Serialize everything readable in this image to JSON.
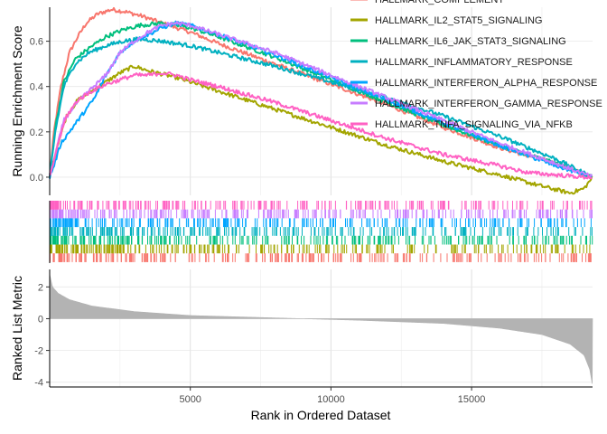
{
  "chart_data": {
    "type": "line",
    "panels": [
      {
        "name": "running-enrichment-score",
        "ylabel": "Running Enrichment Score",
        "ylim": [
          -0.08,
          0.75
        ],
        "yticks": [
          "0.0",
          "0.2",
          "0.4",
          "0.6"
        ],
        "ytick_values": [
          0.0,
          0.2,
          0.4,
          0.6
        ]
      },
      {
        "name": "gene-hit-ticks",
        "ylabel": ""
      },
      {
        "name": "ranked-list-metric",
        "ylabel": "Ranked List Metric",
        "ylim": [
          -4.3,
          3.1
        ],
        "yticks": [
          "2",
          "0",
          "-2",
          "-4"
        ],
        "ytick_values": [
          2,
          0,
          -2,
          -4
        ]
      }
    ],
    "xlabel": "Rank in Ordered Dataset",
    "xlim": [
      0,
      19300
    ],
    "xticks": [
      "5000",
      "10000",
      "15000"
    ],
    "xtick_values": [
      5000,
      10000,
      15000
    ],
    "grid": true,
    "legend_position": "top-right",
    "series": [
      {
        "name": "HALLMARK_COMPLEMENT",
        "color": "#F8766D",
        "x": [
          0,
          150,
          400,
          700,
          1000,
          1300,
          1700,
          2200,
          2700,
          3300,
          4000,
          5000,
          6000,
          8000,
          10000,
          12000,
          14000,
          16000,
          18000,
          19300
        ],
        "y": [
          0.0,
          0.2,
          0.4,
          0.55,
          0.62,
          0.68,
          0.72,
          0.74,
          0.73,
          0.71,
          0.68,
          0.64,
          0.59,
          0.5,
          0.41,
          0.32,
          0.22,
          0.13,
          0.06,
          0.0
        ]
      },
      {
        "name": "HALLMARK_IL2_STAT5_SIGNALING",
        "color": "#A3A500",
        "x": [
          0,
          300,
          600,
          1000,
          1500,
          2000,
          2500,
          3000,
          3500,
          4500,
          6000,
          8000,
          10000,
          12000,
          14000,
          16000,
          17500,
          18500,
          19000,
          19300
        ],
        "y": [
          0.0,
          0.15,
          0.27,
          0.34,
          0.38,
          0.42,
          0.46,
          0.49,
          0.47,
          0.44,
          0.38,
          0.3,
          0.22,
          0.14,
          0.07,
          0.01,
          -0.04,
          -0.07,
          -0.05,
          0.0
        ]
      },
      {
        "name": "HALLMARK_IL6_JAK_STAT3_SIGNALING",
        "color": "#00BF7D",
        "x": [
          0,
          200,
          500,
          900,
          1400,
          2000,
          2600,
          3200,
          4000,
          5000,
          6000,
          8000,
          10000,
          12000,
          14000,
          16000,
          18000,
          19300
        ],
        "y": [
          0.0,
          0.22,
          0.42,
          0.52,
          0.57,
          0.62,
          0.65,
          0.67,
          0.68,
          0.66,
          0.62,
          0.53,
          0.43,
          0.33,
          0.23,
          0.14,
          0.06,
          0.0
        ]
      },
      {
        "name": "HALLMARK_INFLAMMATORY_RESPONSE",
        "color": "#00B0C0",
        "x": [
          0,
          200,
          500,
          900,
          1400,
          2000,
          2600,
          3200,
          4000,
          5000,
          6000,
          8000,
          10000,
          12000,
          14000,
          16000,
          18000,
          19300
        ],
        "y": [
          0.0,
          0.2,
          0.4,
          0.5,
          0.55,
          0.58,
          0.6,
          0.61,
          0.6,
          0.58,
          0.55,
          0.49,
          0.42,
          0.35,
          0.27,
          0.18,
          0.08,
          0.0
        ]
      },
      {
        "name": "HALLMARK_INTERFERON_ALPHA_RESPONSE",
        "color": "#00A5FF",
        "x": [
          0,
          150,
          400,
          700,
          1000,
          1300,
          1600,
          2000,
          2500,
          3000,
          3500,
          4000,
          4500,
          5000,
          6000,
          8000,
          10000,
          12000,
          14000,
          16000,
          18000,
          19300
        ],
        "y": [
          0.0,
          0.05,
          0.15,
          0.2,
          0.25,
          0.3,
          0.35,
          0.45,
          0.55,
          0.6,
          0.63,
          0.66,
          0.68,
          0.67,
          0.63,
          0.54,
          0.44,
          0.34,
          0.24,
          0.14,
          0.05,
          0.0
        ]
      },
      {
        "name": "HALLMARK_INTERFERON_GAMMA_RESPONSE",
        "color": "#C77CFF",
        "x": [
          0,
          200,
          500,
          900,
          1400,
          2000,
          2500,
          3000,
          3500,
          4000,
          4500,
          5000,
          6000,
          8000,
          10000,
          12000,
          14000,
          16000,
          18000,
          19300
        ],
        "y": [
          0.0,
          0.1,
          0.25,
          0.32,
          0.38,
          0.45,
          0.55,
          0.6,
          0.64,
          0.67,
          0.68,
          0.67,
          0.63,
          0.55,
          0.45,
          0.35,
          0.25,
          0.15,
          0.06,
          0.0
        ]
      },
      {
        "name": "HALLMARK_TNFA_SIGNALING_VIA_NFKB",
        "color": "#FF61C3",
        "x": [
          0,
          300,
          600,
          1000,
          1500,
          2000,
          2500,
          3000,
          3500,
          4000,
          4500,
          5000,
          6000,
          8000,
          10000,
          12000,
          14000,
          16000,
          17000,
          18000,
          19000,
          19300
        ],
        "y": [
          0.0,
          0.15,
          0.27,
          0.34,
          0.38,
          0.41,
          0.43,
          0.45,
          0.45,
          0.46,
          0.45,
          0.43,
          0.4,
          0.33,
          0.25,
          0.17,
          0.1,
          0.05,
          0.02,
          0.01,
          0.0,
          0.0
        ]
      }
    ],
    "ranked_list": {
      "color": "#B3B3B3",
      "x": [
        0,
        100,
        300,
        700,
        1500,
        3000,
        5000,
        8000,
        11000,
        14000,
        16000,
        17500,
        18500,
        19000,
        19200,
        19300
      ],
      "y": [
        2.8,
        2.0,
        1.6,
        1.2,
        0.8,
        0.45,
        0.2,
        0.05,
        -0.1,
        -0.3,
        -0.6,
        -1.0,
        -1.6,
        -2.3,
        -3.2,
        -4.2
      ]
    }
  },
  "legend": {
    "items": [
      {
        "label": "HALLMARK_COMPLEMENT",
        "color": "#F8766D"
      },
      {
        "label": "HALLMARK_IL2_STAT5_SIGNALING",
        "color": "#A3A500"
      },
      {
        "label": "HALLMARK_IL6_JAK_STAT3_SIGNALING",
        "color": "#00BF7D"
      },
      {
        "label": "HALLMARK_INFLAMMATORY_RESPONSE",
        "color": "#00B0C0"
      },
      {
        "label": "HALLMARK_INTERFERON_ALPHA_RESPONSE",
        "color": "#00A5FF"
      },
      {
        "label": "HALLMARK_INTERFERON_GAMMA_RESPONSE",
        "color": "#C77CFF"
      },
      {
        "label": "HALLMARK_TNFA_SIGNALING_VIA_NFKB",
        "color": "#FF61C3"
      }
    ]
  }
}
